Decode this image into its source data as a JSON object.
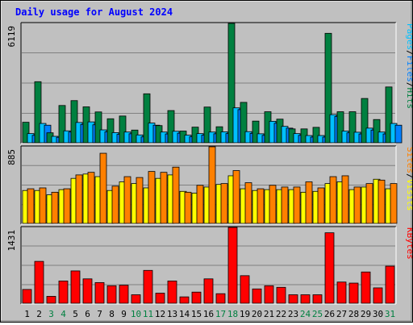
{
  "chart_data": [
    {
      "type": "bar",
      "title": "Daily usage for August 2024",
      "x": [
        "1",
        "2",
        "3",
        "4",
        "5",
        "6",
        "7",
        "8",
        "9",
        "10",
        "11",
        "12",
        "13",
        "14",
        "15",
        "16",
        "17",
        "18",
        "19",
        "20",
        "21",
        "22",
        "23",
        "24",
        "25",
        "26",
        "27",
        "28",
        "29",
        "30",
        "31"
      ],
      "weekend_days": [
        "3",
        "4",
        "10",
        "11",
        "17",
        "18",
        "24",
        "25",
        "31"
      ],
      "max_label": "6119",
      "ylim": [
        0,
        6119
      ],
      "legend": [
        "Pages",
        "/",
        "Files",
        "/",
        "Hits"
      ],
      "series": [
        {
          "name": "Hits",
          "color": "#008040",
          "values": [
            1050,
            3130,
            510,
            1910,
            2160,
            1840,
            1580,
            1230,
            1370,
            650,
            2510,
            880,
            1650,
            600,
            800,
            1830,
            820,
            6119,
            2070,
            1110,
            1590,
            1210,
            710,
            710,
            790,
            5610,
            1590,
            1590,
            2270,
            1190,
            2860
          ]
        },
        {
          "name": "Files",
          "color": "#00c0ff",
          "values": [
            470,
            990,
            330,
            610,
            1040,
            1070,
            660,
            520,
            550,
            400,
            1010,
            550,
            590,
            390,
            470,
            550,
            560,
            1790,
            570,
            460,
            1100,
            840,
            470,
            370,
            370,
            1440,
            600,
            540,
            750,
            550,
            990
          ]
        },
        {
          "name": "Pages",
          "color": "#0080ff",
          "values": [
            380,
            900,
            280,
            550,
            940,
            920,
            560,
            430,
            460,
            300,
            900,
            450,
            490,
            310,
            390,
            460,
            470,
            1700,
            480,
            380,
            1000,
            750,
            380,
            290,
            290,
            1350,
            510,
            450,
            650,
            450,
            900
          ]
        }
      ]
    },
    {
      "type": "bar",
      "max_label": "885",
      "ylim": [
        0,
        885
      ],
      "legend": [
        "Sites",
        "/",
        "Visits"
      ],
      "series": [
        {
          "name": "Visits",
          "color": "#ffff00",
          "values": [
            380,
            380,
            330,
            390,
            520,
            570,
            540,
            380,
            480,
            460,
            410,
            520,
            560,
            370,
            350,
            420,
            450,
            550,
            400,
            380,
            390,
            390,
            390,
            360,
            370,
            460,
            480,
            390,
            420,
            510,
            400
          ]
        },
        {
          "name": "Sites",
          "color": "#ff8000",
          "values": [
            400,
            410,
            360,
            400,
            560,
            590,
            810,
            430,
            540,
            530,
            600,
            590,
            650,
            360,
            440,
            885,
            460,
            610,
            470,
            400,
            440,
            420,
            420,
            480,
            410,
            540,
            550,
            420,
            460,
            500,
            460
          ]
        }
      ]
    },
    {
      "type": "bar",
      "max_label": "1431",
      "ylim": [
        0,
        1431
      ],
      "legend": [
        "KBytes"
      ],
      "series": [
        {
          "name": "KBytes",
          "color": "#ff0000",
          "values": [
            260,
            790,
            130,
            420,
            610,
            460,
            390,
            330,
            340,
            160,
            620,
            190,
            420,
            120,
            210,
            460,
            180,
            1431,
            520,
            270,
            330,
            300,
            160,
            160,
            160,
            1330,
            400,
            380,
            590,
            290,
            700
          ]
        }
      ]
    }
  ]
}
